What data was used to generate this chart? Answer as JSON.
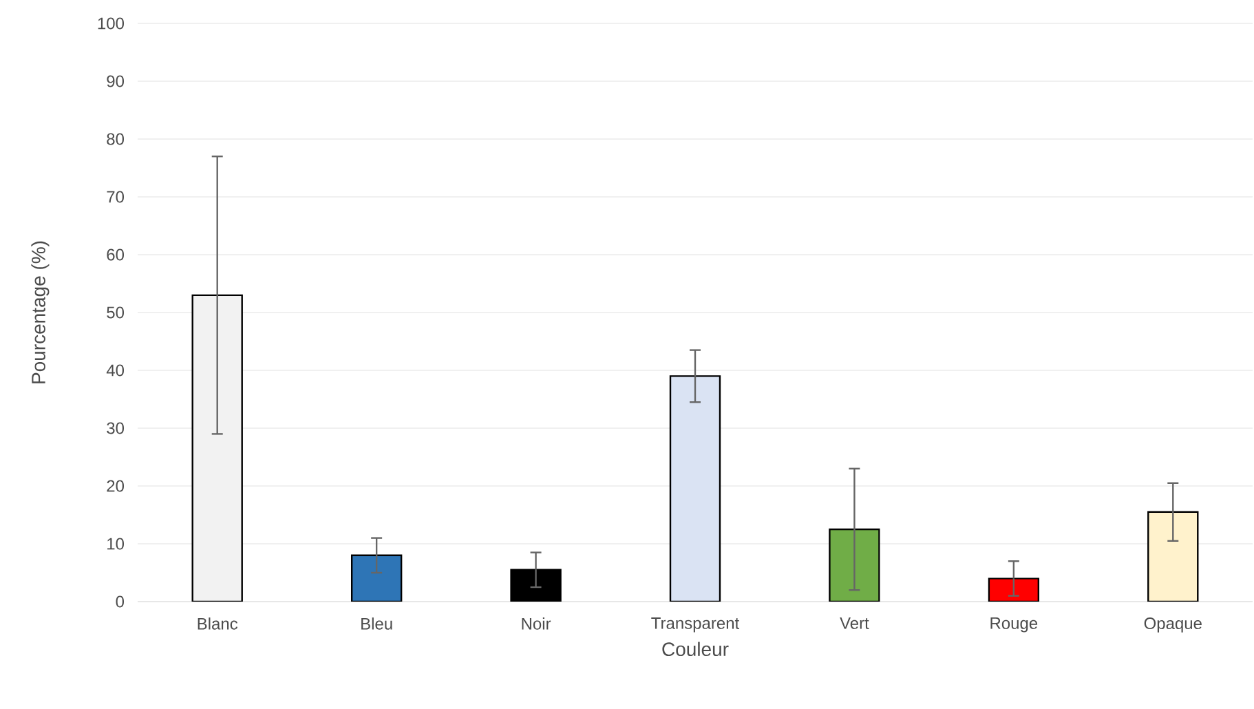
{
  "chart_data": {
    "type": "bar",
    "xlabel": "Couleur",
    "ylabel": "Pourcentage (%)",
    "categories": [
      "Blanc",
      "Bleu",
      "Noir",
      "Transparent",
      "Vert",
      "Rouge",
      "Opaque"
    ],
    "values": [
      53,
      8,
      5.5,
      39,
      12.5,
      4,
      15.5
    ],
    "errors": [
      24,
      3,
      3,
      4.5,
      10.5,
      3,
      5
    ],
    "colors": [
      "#f2f2f2",
      "#2e75b6",
      "#000000",
      "#dae3f3",
      "#70ad47",
      "#ff0000",
      "#fff2cc"
    ],
    "ylim": [
      0,
      100
    ],
    "yticks": [
      0,
      10,
      20,
      30,
      40,
      50,
      60,
      70,
      80,
      90,
      100
    ],
    "grid": "y"
  }
}
